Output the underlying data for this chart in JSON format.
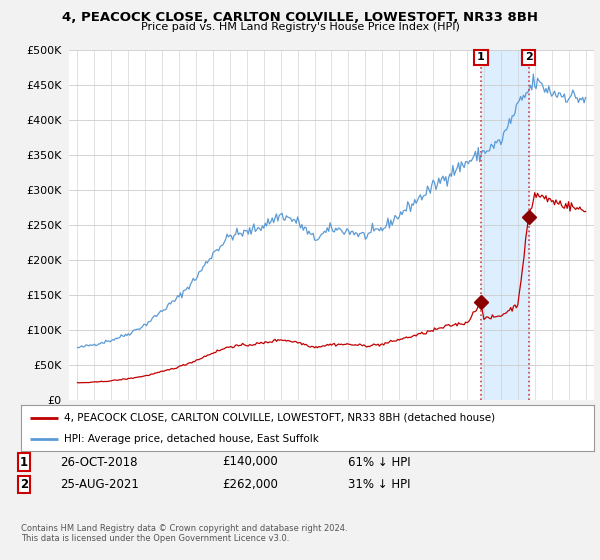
{
  "title1": "4, PEACOCK CLOSE, CARLTON COLVILLE, LOWESTOFT, NR33 8BH",
  "title2": "Price paid vs. HM Land Registry's House Price Index (HPI)",
  "legend_label_red": "4, PEACOCK CLOSE, CARLTON COLVILLE, LOWESTOFT, NR33 8BH (detached house)",
  "legend_label_blue": "HPI: Average price, detached house, East Suffolk",
  "copyright": "Contains HM Land Registry data © Crown copyright and database right 2024.\nThis data is licensed under the Open Government Licence v3.0.",
  "sale1_date": "26-OCT-2018",
  "sale1_price": "£140,000",
  "sale1_hpi": "61% ↓ HPI",
  "sale2_date": "25-AUG-2021",
  "sale2_price": "£262,000",
  "sale2_hpi": "31% ↓ HPI",
  "sale1_year": 2018.82,
  "sale1_value": 140000,
  "sale2_year": 2021.65,
  "sale2_value": 262000,
  "hpi_color": "#5b9bd5",
  "price_color": "#c00000",
  "marker_color": "#8b0000",
  "bg_color": "#f2f2f2",
  "plot_bg": "#ffffff",
  "shade_color": "#ddeeff",
  "ylim": [
    0,
    500000
  ],
  "yticks": [
    0,
    50000,
    100000,
    150000,
    200000,
    250000,
    300000,
    350000,
    400000,
    450000,
    500000
  ]
}
